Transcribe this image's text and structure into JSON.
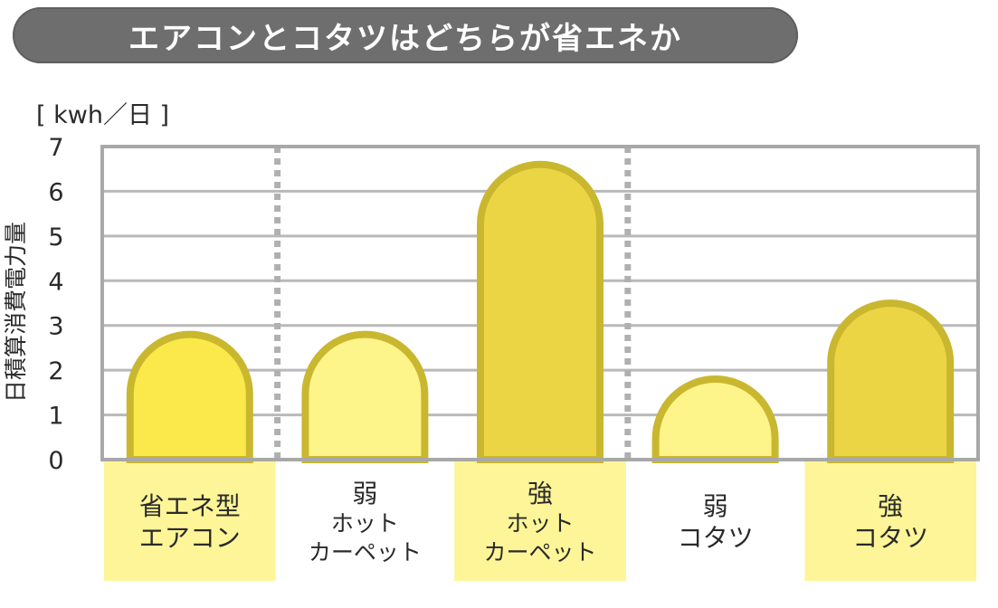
{
  "chart_data": {
    "type": "bar",
    "title": "エアコンとコタツはどちらが省エネか",
    "unit": "[ kwh／日 ]",
    "ylabel": "日積算消費電力量",
    "ylim": [
      0,
      7
    ],
    "yticks": [
      "0",
      "1",
      "2",
      "3",
      "4",
      "5",
      "6",
      "7"
    ],
    "categories": [
      {
        "line1": "省エネ型",
        "line2": "エアコン",
        "line3": ""
      },
      {
        "line1": "弱",
        "line2": "ホット",
        "line3": "カーペット"
      },
      {
        "line1": "強",
        "line2": "ホット",
        "line3": "カーペット"
      },
      {
        "line1": "弱",
        "line2": "コタツ",
        "line3": ""
      },
      {
        "line1": "強",
        "line2": "コタツ",
        "line3": ""
      }
    ],
    "values": [
      2.8,
      2.8,
      6.6,
      1.8,
      3.5
    ],
    "bar_fill_colors": [
      "#fbe84a",
      "#fdf48a",
      "#ecd545",
      "#fdf48a",
      "#ecd545"
    ],
    "bar_stroke_color": "#c9b72f",
    "label_bg_colors": [
      "#fdf597",
      "#ffffff",
      "#fdf597",
      "#ffffff",
      "#fdf597"
    ],
    "grid": true
  }
}
